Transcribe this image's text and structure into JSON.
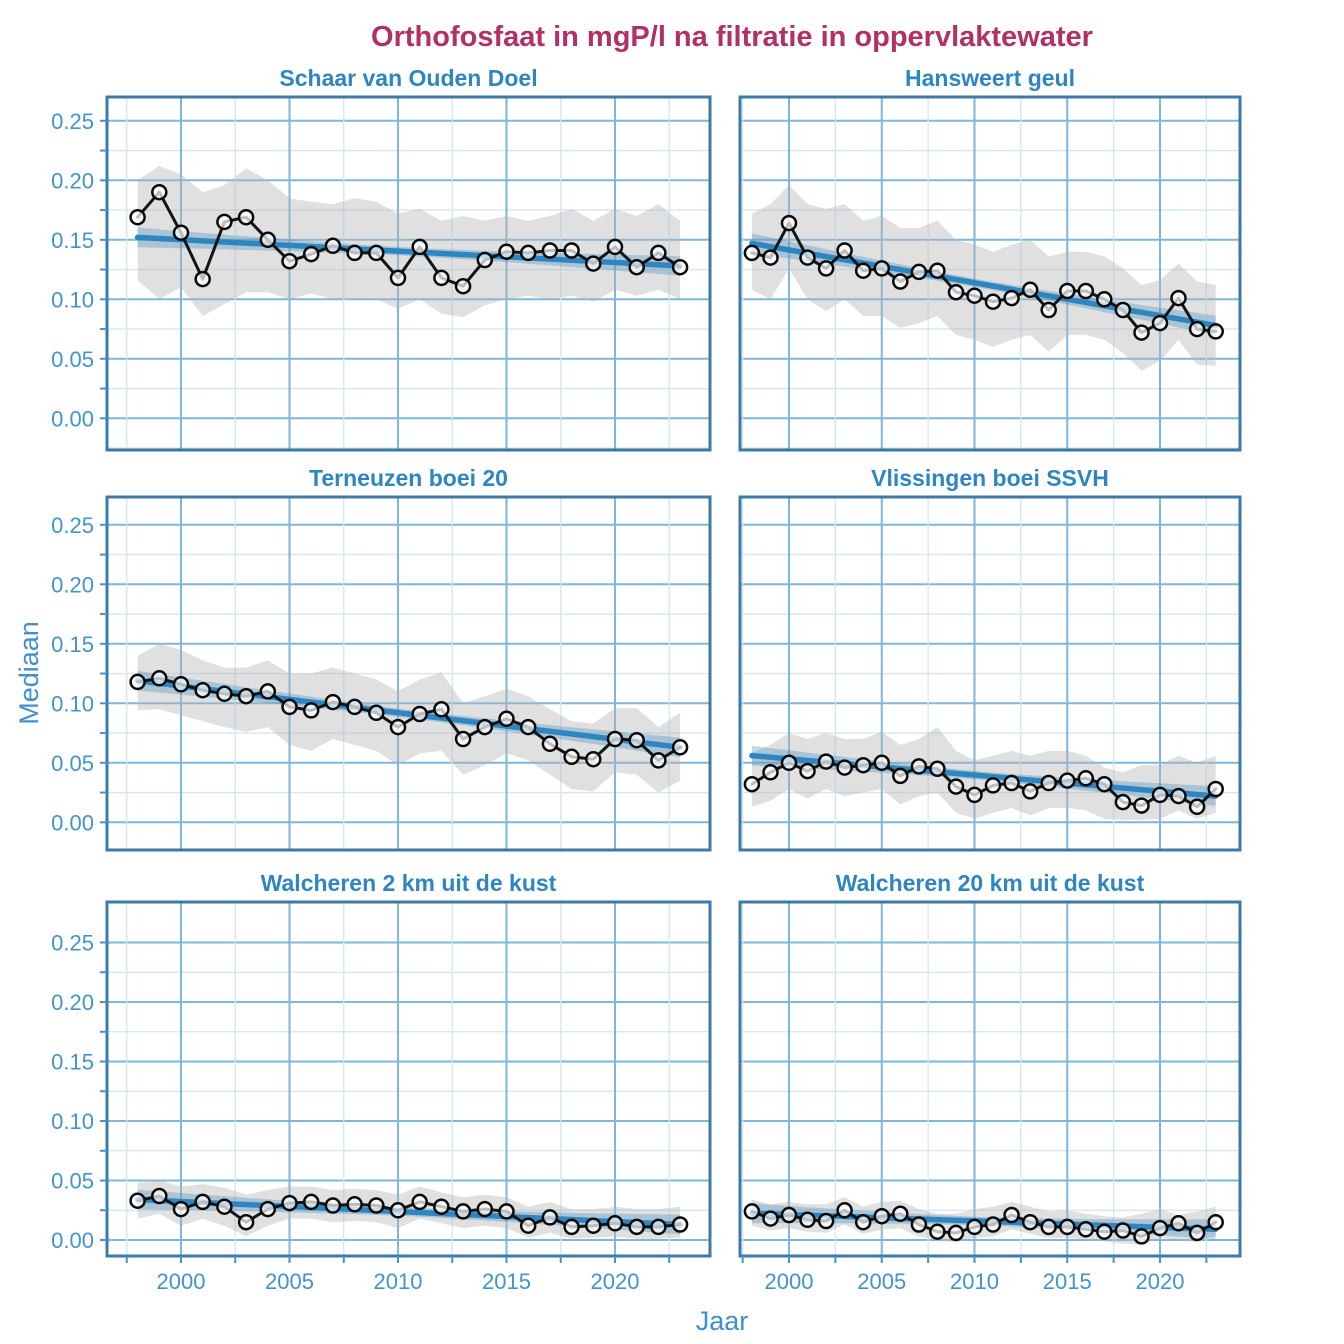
{
  "title": "Orthofosfaat in mgP/l na filtratie in oppervlaktewater",
  "y_axis_title": "Mediaan",
  "x_axis_title": "Jaar",
  "y_tick_labels": [
    "0.00",
    "0.05",
    "0.10",
    "0.15",
    "0.20",
    "0.25"
  ],
  "x_tick_labels": [
    "2000",
    "2005",
    "2010",
    "2015",
    "2020"
  ],
  "colors": {
    "background": "#FFFFFF",
    "main_title": "#B13067",
    "panel_title": "#2E86C1",
    "axis_text": "#4394CB",
    "axis_title_text": "#3E8FD0",
    "grid_major": "#7FB6DB",
    "grid_minor": "#D2E6F4",
    "panel_border": "#3D7AA6",
    "trend_line": "#2E86C1",
    "trend_band": "#3186BD",
    "data_band": "#B4B4B4",
    "data_line": "#141414",
    "marker_stroke": "#0A0A0A",
    "marker_fill": "#FFFFFF"
  },
  "chart_data": {
    "type": "line",
    "xlabel": "Jaar",
    "ylabel": "Mediaan",
    "ylim": [
      0,
      0.25
    ],
    "xlim": [
      1998,
      2023
    ],
    "x_ticks": [
      2000,
      2005,
      2010,
      2015,
      2020
    ],
    "y_ticks": [
      0.0,
      0.05,
      0.1,
      0.15,
      0.2,
      0.25
    ],
    "grid": "on",
    "years": [
      1998,
      1999,
      2000,
      2001,
      2002,
      2003,
      2004,
      2005,
      2006,
      2007,
      2008,
      2009,
      2010,
      2011,
      2012,
      2013,
      2014,
      2015,
      2016,
      2017,
      2018,
      2019,
      2020,
      2021,
      2022,
      2023
    ],
    "panels": [
      {
        "title": "Schaar van Ouden Doel",
        "median": [
          0.169,
          0.19,
          0.156,
          0.117,
          0.165,
          0.169,
          0.15,
          0.132,
          0.138,
          0.145,
          0.139,
          0.139,
          0.118,
          0.144,
          0.118,
          0.111,
          0.133,
          0.14,
          0.139,
          0.141,
          0.141,
          0.13,
          0.144,
          0.127,
          0.139,
          0.127
        ],
        "band_upper": [
          0.2,
          0.212,
          0.205,
          0.19,
          0.196,
          0.21,
          0.2,
          0.185,
          0.182,
          0.18,
          0.185,
          0.182,
          0.172,
          0.176,
          0.166,
          0.17,
          0.166,
          0.17,
          0.166,
          0.17,
          0.176,
          0.166,
          0.176,
          0.17,
          0.18,
          0.166
        ],
        "band_lower": [
          0.116,
          0.1,
          0.11,
          0.086,
          0.096,
          0.106,
          0.106,
          0.1,
          0.105,
          0.1,
          0.1,
          0.1,
          0.092,
          0.1,
          0.088,
          0.085,
          0.095,
          0.1,
          0.103,
          0.1,
          0.103,
          0.098,
          0.108,
          0.103,
          0.108,
          0.1
        ],
        "trend": {
          "start": 0.152,
          "end": 0.128
        }
      },
      {
        "title": "Hansweert geul",
        "median": [
          0.139,
          0.135,
          0.164,
          0.135,
          0.126,
          0.141,
          0.124,
          0.126,
          0.115,
          0.123,
          0.124,
          0.106,
          0.103,
          0.098,
          0.101,
          0.108,
          0.091,
          0.107,
          0.107,
          0.1,
          0.091,
          0.072,
          0.08,
          0.101,
          0.075,
          0.073
        ],
        "band_upper": [
          0.172,
          0.18,
          0.196,
          0.18,
          0.176,
          0.18,
          0.166,
          0.17,
          0.16,
          0.16,
          0.166,
          0.15,
          0.146,
          0.14,
          0.146,
          0.15,
          0.136,
          0.14,
          0.14,
          0.136,
          0.126,
          0.112,
          0.116,
          0.13,
          0.115,
          0.112
        ],
        "band_lower": [
          0.108,
          0.1,
          0.126,
          0.1,
          0.09,
          0.1,
          0.086,
          0.086,
          0.076,
          0.08,
          0.086,
          0.07,
          0.066,
          0.06,
          0.066,
          0.07,
          0.056,
          0.07,
          0.07,
          0.066,
          0.055,
          0.04,
          0.048,
          0.066,
          0.045,
          0.044
        ],
        "trend": {
          "start": 0.147,
          "end": 0.078
        }
      },
      {
        "title": "Terneuzen boei 20",
        "median": [
          0.118,
          0.121,
          0.116,
          0.111,
          0.108,
          0.106,
          0.11,
          0.097,
          0.094,
          0.101,
          0.097,
          0.092,
          0.08,
          0.091,
          0.095,
          0.07,
          0.08,
          0.087,
          0.08,
          0.066,
          0.055,
          0.053,
          0.07,
          0.069,
          0.052,
          0.063
        ],
        "band_upper": [
          0.14,
          0.15,
          0.145,
          0.136,
          0.13,
          0.13,
          0.136,
          0.125,
          0.125,
          0.13,
          0.125,
          0.12,
          0.11,
          0.12,
          0.126,
          0.1,
          0.106,
          0.112,
          0.106,
          0.095,
          0.085,
          0.083,
          0.096,
          0.096,
          0.08,
          0.092
        ],
        "band_lower": [
          0.094,
          0.095,
          0.09,
          0.085,
          0.08,
          0.076,
          0.08,
          0.065,
          0.06,
          0.07,
          0.065,
          0.06,
          0.048,
          0.058,
          0.06,
          0.04,
          0.048,
          0.058,
          0.052,
          0.04,
          0.028,
          0.026,
          0.042,
          0.04,
          0.025,
          0.035
        ],
        "trend": {
          "start": 0.119,
          "end": 0.063
        }
      },
      {
        "title": "Vlissingen boei SSVH",
        "median": [
          0.032,
          0.042,
          0.05,
          0.043,
          0.051,
          0.046,
          0.048,
          0.05,
          0.039,
          0.047,
          0.045,
          0.03,
          0.023,
          0.031,
          0.033,
          0.026,
          0.033,
          0.035,
          0.037,
          0.032,
          0.017,
          0.014,
          0.023,
          0.022,
          0.013,
          0.028
        ],
        "band_upper": [
          0.058,
          0.065,
          0.075,
          0.07,
          0.075,
          0.07,
          0.07,
          0.076,
          0.065,
          0.07,
          0.08,
          0.06,
          0.052,
          0.056,
          0.06,
          0.056,
          0.06,
          0.06,
          0.056,
          0.046,
          0.042,
          0.048,
          0.048,
          0.056,
          0.05,
          0.056
        ],
        "band_lower": [
          0.013,
          0.018,
          0.028,
          0.02,
          0.028,
          0.022,
          0.025,
          0.028,
          0.015,
          0.022,
          0.025,
          0.008,
          0.003,
          0.008,
          0.012,
          0.006,
          0.012,
          0.012,
          0.01,
          0.003,
          0.002,
          0.002,
          0.003,
          0.01,
          0.003,
          0.008
        ],
        "trend": {
          "start": 0.056,
          "end": 0.022
        }
      },
      {
        "title": "Walcheren 2 km uit de kust",
        "median": [
          0.033,
          0.037,
          0.026,
          0.032,
          0.028,
          0.015,
          0.026,
          0.031,
          0.032,
          0.029,
          0.03,
          0.029,
          0.025,
          0.032,
          0.028,
          0.024,
          0.026,
          0.024,
          0.012,
          0.019,
          0.011,
          0.012,
          0.014,
          0.011,
          0.011,
          0.013
        ],
        "band_upper": [
          0.048,
          0.05,
          0.045,
          0.047,
          0.044,
          0.038,
          0.042,
          0.045,
          0.045,
          0.042,
          0.043,
          0.042,
          0.038,
          0.045,
          0.04,
          0.036,
          0.038,
          0.036,
          0.028,
          0.032,
          0.026,
          0.026,
          0.028,
          0.026,
          0.026,
          0.028
        ],
        "band_lower": [
          0.018,
          0.022,
          0.012,
          0.018,
          0.012,
          0.003,
          0.012,
          0.018,
          0.018,
          0.015,
          0.016,
          0.015,
          0.01,
          0.018,
          0.014,
          0.01,
          0.012,
          0.01,
          0.002,
          0.006,
          0.001,
          0.002,
          0.003,
          0.001,
          0.001,
          0.002
        ],
        "trend": {
          "start": 0.034,
          "end": 0.013
        }
      },
      {
        "title": "Walcheren 20 km uit de kust",
        "median": [
          0.024,
          0.018,
          0.021,
          0.017,
          0.016,
          0.025,
          0.015,
          0.02,
          0.022,
          0.013,
          0.007,
          0.006,
          0.011,
          0.013,
          0.021,
          0.015,
          0.011,
          0.011,
          0.009,
          0.007,
          0.008,
          0.003,
          0.01,
          0.014,
          0.006,
          0.015
        ],
        "band_upper": [
          0.034,
          0.03,
          0.032,
          0.03,
          0.03,
          0.036,
          0.028,
          0.032,
          0.033,
          0.026,
          0.022,
          0.022,
          0.026,
          0.028,
          0.032,
          0.028,
          0.024,
          0.025,
          0.022,
          0.02,
          0.019,
          0.022,
          0.026,
          0.021,
          0.024,
          0.028
        ],
        "band_lower": [
          0.012,
          0.008,
          0.01,
          0.007,
          0.006,
          0.013,
          0.005,
          0.009,
          0.01,
          0.003,
          0.0,
          -0.002,
          0.002,
          0.003,
          0.009,
          0.005,
          0.002,
          0.002,
          0.0,
          -0.001,
          -0.003,
          -0.004,
          0.002,
          0.0,
          -0.002,
          0.004
        ],
        "trend": {
          "start": 0.0225,
          "end": 0.009
        }
      }
    ]
  }
}
